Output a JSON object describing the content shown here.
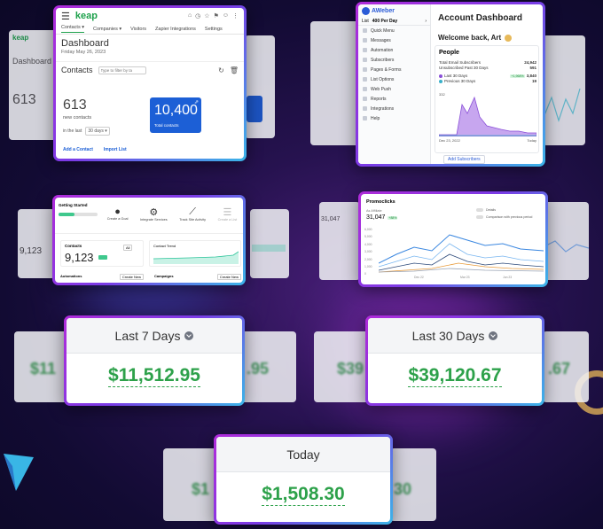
{
  "keap": {
    "logo": "keap",
    "tabs": [
      "Contacts ▾",
      "Companies ▾",
      "Visitors",
      "Zapier Integrations",
      "Settings"
    ],
    "title": "Dashboard",
    "date": "Friday May 26, 2023",
    "contacts_label": "Contacts",
    "filter_placeholder": "Type to filter by ta",
    "new_contacts_value": "613",
    "new_contacts_label": "new contacts",
    "in_the_last": "in the last",
    "range": "30 days ▾",
    "total_value": "10,400",
    "total_label": "Total contacts",
    "add_contact": "Add a Contact",
    "import_list": "Import List"
  },
  "aweber": {
    "logo": "AWeber",
    "list_label": "List",
    "list_value": "400 Per Day",
    "menu": [
      "Quick Menu",
      "Messages",
      "Automation",
      "Subscribers",
      "Pages & Forms",
      "List Options",
      "Web Push",
      "Reports",
      "Integrations",
      "Help"
    ],
    "title": "Account Dashboard",
    "welcome": "Welcome back, Art",
    "people": "People",
    "stats": [
      {
        "label": "Total Email Subscribers",
        "value": "24,942"
      },
      {
        "label": "Unsubscribed Past 30 Days",
        "value": "591"
      },
      {
        "label": "Last 30 Days",
        "value": "3,840",
        "badge": "+1,968%"
      },
      {
        "label": "Previous 30 Days",
        "value": "19"
      }
    ],
    "y_top": "332",
    "x_start": "Dec 23, 2022",
    "x_end": "Today",
    "add_subscribers": "Add Subscribers"
  },
  "getting": {
    "title": "Getting Started",
    "steps": [
      "Create a Goal",
      "Integrate Services",
      "Track Site Activity",
      "Create a List"
    ],
    "contacts_label": "Contacts",
    "contacts_value": "9,123",
    "trend_label": "Contact Trend",
    "range": "All",
    "automations": "Automations",
    "campaigns": "Campaigns",
    "create_new": "Create New"
  },
  "promo": {
    "title": "Promoclicks",
    "subtitle": "As Affiliate",
    "value": "31,047",
    "badge": "+88%",
    "toggle1": "Details",
    "toggle2": "Comparison with previous period",
    "y_ticks": [
      "6,000",
      "5,000",
      "4,000",
      "3,000",
      "2,000",
      "1,000",
      "0"
    ],
    "x_ticks": [
      "Dec 22",
      "Mar 23",
      "Jun 23"
    ]
  },
  "cards": {
    "last7": {
      "label": "Last 7 Days",
      "value": "$11,512.95"
    },
    "last30": {
      "label": "Last 30 Days",
      "value": "$39,120.67"
    },
    "today": {
      "label": "Today",
      "value": "$1,508.30"
    }
  },
  "ghosts": {
    "left1_title": "Dashboard",
    "left1_value": "613",
    "left7": "$11",
    "right7": ".95",
    "left30": "$39",
    "right30": ".67",
    "lefttoday": "$1",
    "righttoday": "30"
  },
  "colors": {
    "accent_green": "#2da14a",
    "keap_blue": "#1c5fd6",
    "frame_purple": "#b02bd9",
    "frame_blue": "#3bb5e8"
  }
}
